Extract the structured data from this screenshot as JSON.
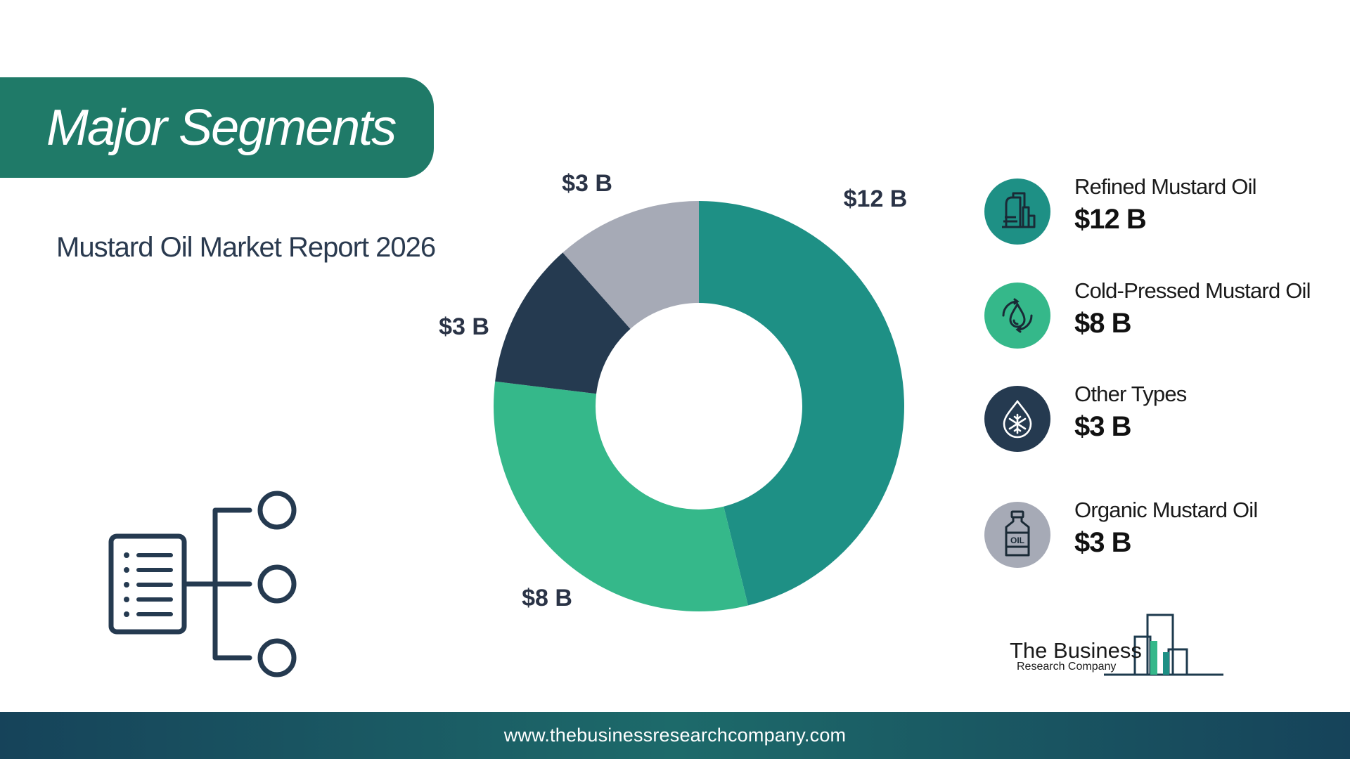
{
  "header": {
    "title": "Major Segments"
  },
  "report": {
    "subtitle": "Mustard Oil Market Report 2026"
  },
  "chart_data": {
    "type": "pie",
    "donut": true,
    "unit": "$ B",
    "categories": [
      "Refined Mustard Oil",
      "Cold-Pressed Mustard Oil",
      "Other Types",
      "Organic Mustard Oil"
    ],
    "values": [
      12,
      8,
      3,
      3
    ],
    "labels": [
      "$12 B",
      "$8 B",
      "$3 B",
      "$3 B"
    ],
    "colors": [
      "#1e9085",
      "#35b88a",
      "#253a50",
      "#a6aab6"
    ],
    "legend_position": "right"
  },
  "legend": {
    "items": [
      {
        "name": "Refined Mustard Oil",
        "value": "$12 B",
        "icon": "refinery-icon",
        "color": "#1e9085"
      },
      {
        "name": " Cold-Pressed Mustard Oil",
        "value": "$8 B",
        "icon": "oil-drop-icon",
        "color": "#35b88a"
      },
      {
        "name": "Other Types",
        "value": "$3 B",
        "icon": "snowflake-drop-icon",
        "color": "#253a50"
      },
      {
        "name": "Organic Mustard Oil",
        "value": "$3 B",
        "icon": "oil-bottle-icon",
        "color": "#a6aab6"
      }
    ]
  },
  "branding": {
    "line1": "The Business",
    "line2": "Research Company"
  },
  "footer": {
    "url": "www.thebusinessresearchcompany.com"
  }
}
